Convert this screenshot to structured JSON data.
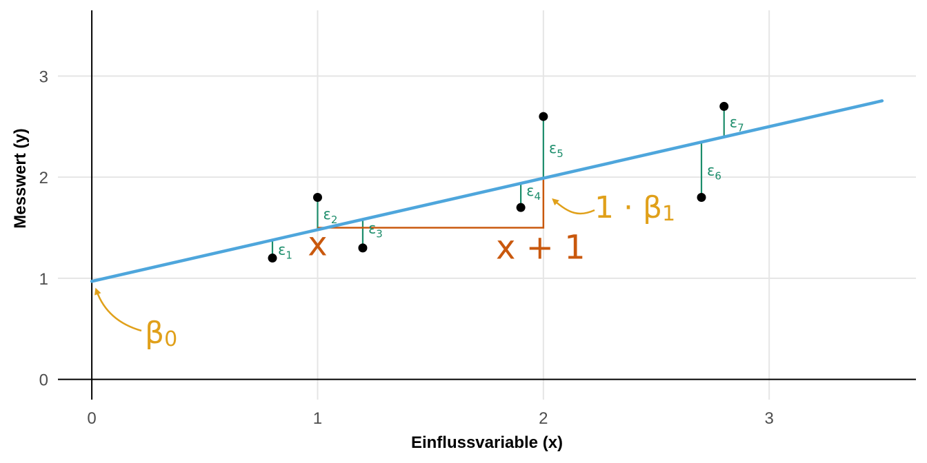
{
  "chart_data": {
    "type": "scatter",
    "title": "",
    "xlabel": "Einflussvariable (x)",
    "ylabel": "Messwert (y)",
    "xlim": [
      -0.15,
      3.65
    ],
    "ylim": [
      -0.2,
      3.65
    ],
    "x_ticks": [
      0,
      1,
      2,
      3
    ],
    "y_ticks": [
      0,
      1,
      2,
      3
    ],
    "x_tick_labels": [
      "0",
      "1",
      "2",
      "3"
    ],
    "y_tick_labels": [
      "0",
      "1",
      "2",
      "3"
    ],
    "grid": true,
    "points": [
      {
        "x": 0.8,
        "y": 1.2
      },
      {
        "x": 1.0,
        "y": 1.8
      },
      {
        "x": 1.2,
        "y": 1.3
      },
      {
        "x": 1.9,
        "y": 1.7
      },
      {
        "x": 2.0,
        "y": 2.6
      },
      {
        "x": 2.7,
        "y": 1.8
      },
      {
        "x": 2.8,
        "y": 2.7
      }
    ],
    "regression_line": {
      "intercept": 0.97,
      "slope": 0.51,
      "x_start": 0,
      "x_end": 3.5
    },
    "residual_labels": [
      "ε1",
      "ε2",
      "ε3",
      "ε4",
      "ε5",
      "ε6",
      "ε7"
    ],
    "residual_base": "ε",
    "residual_subscripts": [
      "1",
      "2",
      "3",
      "4",
      "5",
      "6",
      "7"
    ],
    "step": {
      "x_from": 1,
      "x_to": 2,
      "y": 1.5
    },
    "annotations": {
      "x_label": "x",
      "x_plus_one": "x + 1",
      "beta0_base": "β",
      "beta0_sub": "0",
      "beta1_prefix": "1 · ",
      "beta1_base": "β",
      "beta1_sub": "1"
    },
    "colors": {
      "line": "#4ea6dc",
      "residual": "#1b8c6a",
      "step": "#c9580d",
      "beta": "#e0a01a",
      "point": "#000000",
      "grid": "#e5e5e5",
      "axis": "#000000"
    }
  }
}
